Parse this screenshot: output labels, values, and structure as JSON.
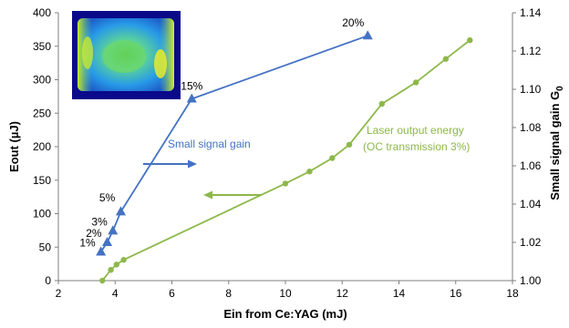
{
  "chart_data": {
    "type": "line",
    "x_axis": {
      "label": "Ein from Ce:YAG (mJ)",
      "range": [
        2,
        18
      ],
      "ticks": [
        2,
        4,
        6,
        8,
        10,
        12,
        14,
        16,
        18
      ]
    },
    "y_left": {
      "label": "Eout (µJ)",
      "range": [
        0,
        400
      ],
      "ticks": [
        0,
        50,
        100,
        150,
        200,
        250,
        300,
        350,
        400
      ]
    },
    "y_right": {
      "label": "Small signal gain G",
      "label_subscript": "0",
      "range": [
        1.0,
        1.14
      ],
      "ticks": [
        "1.00",
        "1.02",
        "1.04",
        "1.06",
        "1.08",
        "1.10",
        "1.12",
        "1.14"
      ]
    },
    "series": [
      {
        "axis": "right",
        "color": "#4472C4",
        "marker": "triangle",
        "x": [
          3.5,
          3.72,
          3.92,
          4.2,
          6.7,
          12.9
        ],
        "y": [
          1.015,
          1.02,
          1.026,
          1.036,
          1.095,
          1.128
        ],
        "point_labels": [
          "1%",
          "2%",
          "3%",
          "",
          "15%",
          "20%"
        ],
        "extra_labels": [
          {
            "text": "5%",
            "x": 4.0,
            "y": 1.0415
          }
        ]
      },
      {
        "axis": "left",
        "color": "#8DB84A",
        "marker": "circle",
        "x": [
          3.55,
          3.85,
          4.05,
          4.3,
          10.0,
          10.85,
          11.65,
          12.25,
          13.4,
          14.6,
          15.65,
          16.5
        ],
        "y": [
          0,
          16,
          24,
          31,
          145,
          163,
          183,
          203,
          264,
          296,
          331,
          359
        ]
      }
    ],
    "annotations": [
      {
        "text": "Small signal gain",
        "color": "#4472C4"
      },
      {
        "text": "Laser output energy",
        "color": "#8DB84A"
      },
      {
        "text": "(OC transmission 3%)",
        "color": "#8DB84A"
      }
    ],
    "grid": false,
    "legend": "none",
    "inset_image": "beam-profile"
  }
}
